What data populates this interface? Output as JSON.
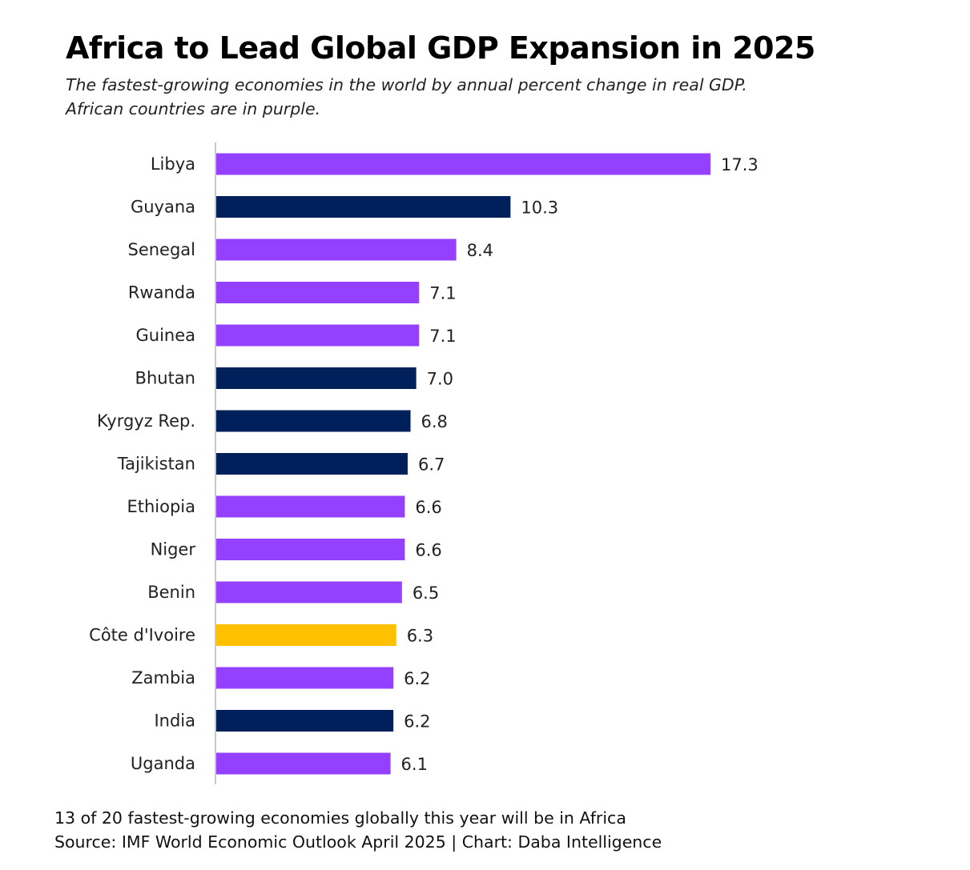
{
  "title": "Africa to Lead Global GDP Expansion in 2025",
  "subtitle_lines": [
    "The fastest-growing economies in the world by annual  percent change in real GDP.",
    "African countries are in purple."
  ],
  "footer": {
    "note": "13 of 20 fastest-growing economies globally this year will be in Africa",
    "source": "Source: IMF World Economic Outlook April 2025 | Chart: Daba Intelligence"
  },
  "colors": {
    "africa": "#9340FF",
    "other": "#00205B",
    "highlight": "#FFC000",
    "axis": "#C8C8C8"
  },
  "chart_data": {
    "type": "bar",
    "orientation": "horizontal",
    "categories": [
      "Libya",
      "Guyana",
      "Senegal",
      "Rwanda",
      "Guinea",
      "Bhutan",
      "Kyrgyz Rep.",
      "Tajikistan",
      "Ethiopia",
      "Niger",
      "Benin",
      "Côte d'Ivoire",
      "Zambia",
      "India",
      "Uganda"
    ],
    "values": [
      17.3,
      10.3,
      8.4,
      7.1,
      7.1,
      7.0,
      6.8,
      6.7,
      6.6,
      6.6,
      6.5,
      6.3,
      6.2,
      6.2,
      6.1
    ],
    "value_labels": [
      "17.3",
      "10.3",
      "8.4",
      "7.1",
      "7.1",
      "7.0",
      "6.8",
      "6.7",
      "6.6",
      "6.6",
      "6.5",
      "6.3",
      "6.2",
      "6.2",
      "6.1"
    ],
    "bar_colors": [
      "africa",
      "other",
      "africa",
      "africa",
      "africa",
      "other",
      "other",
      "other",
      "africa",
      "africa",
      "africa",
      "highlight",
      "africa",
      "other",
      "africa"
    ],
    "xlim": [
      0,
      17.3
    ],
    "grid": false,
    "legend": "none",
    "xlabel": "",
    "ylabel": ""
  }
}
